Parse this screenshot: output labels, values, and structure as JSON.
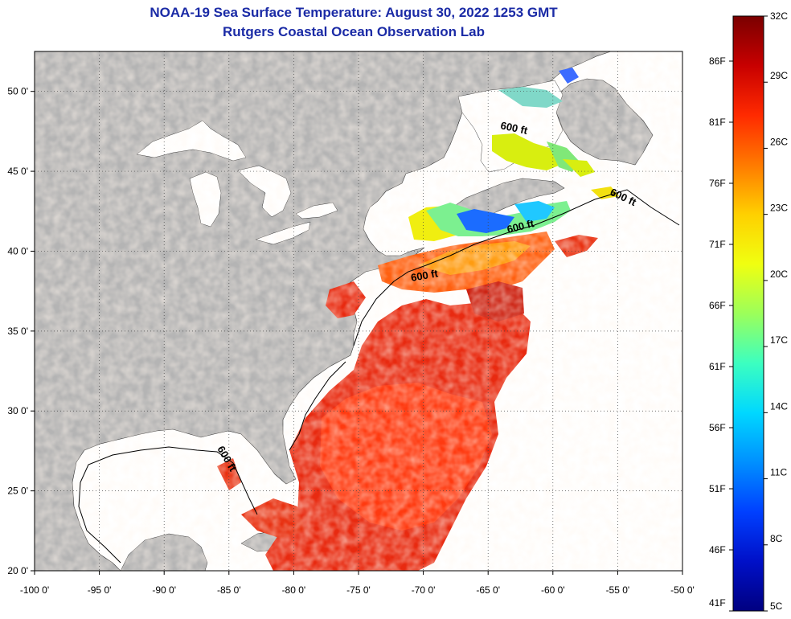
{
  "header": {
    "title": "NOAA-19 Sea Surface Temperature:  August 30, 2022 1253 GMT",
    "subtitle": "Rutgers Coastal Ocean Observation Lab"
  },
  "map": {
    "lon_range": [
      -100,
      -50
    ],
    "lat_range": [
      20,
      52.5
    ],
    "lon_ticks": [
      {
        "v": -100,
        "label": "-100 0'"
      },
      {
        "v": -95,
        "label": "-95 0'"
      },
      {
        "v": -90,
        "label": "-90 0'"
      },
      {
        "v": -85,
        "label": "-85 0'"
      },
      {
        "v": -80,
        "label": "-80 0'"
      },
      {
        "v": -75,
        "label": "-75 0'"
      },
      {
        "v": -70,
        "label": "-70 0'"
      },
      {
        "v": -65,
        "label": "-65 0'"
      },
      {
        "v": -60,
        "label": "-60 0'"
      },
      {
        "v": -55,
        "label": "-55 0'"
      },
      {
        "v": -50,
        "label": "-50 0'"
      }
    ],
    "lat_ticks": [
      {
        "v": 20,
        "label": "20 0'"
      },
      {
        "v": 25,
        "label": "25 0'"
      },
      {
        "v": 30,
        "label": "30 0'"
      },
      {
        "v": 35,
        "label": "35 0'"
      },
      {
        "v": 40,
        "label": "40 0'"
      },
      {
        "v": 45,
        "label": "45 0'"
      },
      {
        "v": 50,
        "label": "50 0'"
      }
    ],
    "grid": "dotted",
    "isobath_labels": [
      "600 ft",
      "600 ft",
      "600 ft",
      "600 ft",
      "600 ft"
    ]
  },
  "colorbar": {
    "celsius": [
      "32C",
      "29C",
      "26C",
      "23C",
      "20C",
      "17C",
      "14C",
      "11C",
      "8C",
      "5C"
    ],
    "fahrenheit": [
      "86F",
      "81F",
      "76F",
      "71F",
      "66F",
      "61F",
      "56F",
      "51F",
      "46F",
      "41F"
    ],
    "colors": [
      "#7a0000",
      "#c80000",
      "#ff2a00",
      "#ff7a00",
      "#ffd000",
      "#f0ff10",
      "#9cff5a",
      "#3cffc0",
      "#00d8ff",
      "#0090ff",
      "#0040ff",
      "#0010c8",
      "#000080"
    ]
  }
}
